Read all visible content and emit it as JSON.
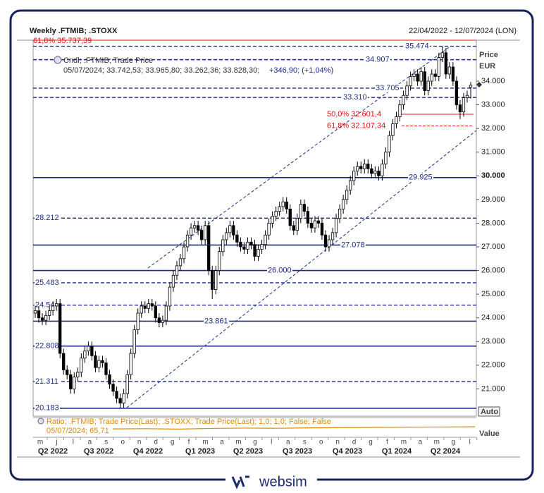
{
  "header": {
    "title": "Weekly .FTMIB; .STOXX",
    "range": "22/04/2022 - 12/07/2024 (LON)",
    "unit_title": "Price",
    "unit": "EUR",
    "legend": "Cndl; .FTMIB; Trade Price",
    "quote": "05/07/2024; 33.742,53; 33.965,80; 33.262,36; 33.828,30;",
    "change": "+346,90; (+1,04%)",
    "ratio_legend": "Ratio; .FTMIB; Trade Price(Last); .STOXX; Trade Price(Last);  1,0; 1,0; False; False",
    "ratio_quote": "05/07/2024; 65,71",
    "auto": "Auto",
    "value_title": "Value",
    "logo": "websim"
  },
  "chart_data": {
    "type": "candlestick",
    "up_color": "#ffffff",
    "down_color": "#000000",
    "edge_color": "#000000",
    "ylim": [
      19850,
      35730
    ],
    "yticks": [
      {
        "value": 21000,
        "label": "21.000"
      },
      {
        "value": 22000,
        "label": "22.000"
      },
      {
        "value": 23000,
        "label": "23.000"
      },
      {
        "value": 24000,
        "label": "24.000"
      },
      {
        "value": 25000,
        "label": "25.000"
      },
      {
        "value": 26000,
        "label": "26.000"
      },
      {
        "value": 27000,
        "label": "27.000"
      },
      {
        "value": 28000,
        "label": "28.000"
      },
      {
        "value": 29000,
        "label": "29.000"
      },
      {
        "value": 30000,
        "label": "30.000"
      },
      {
        "value": 31000,
        "label": "31.000"
      },
      {
        "value": 32000,
        "label": "32.000"
      },
      {
        "value": 33000,
        "label": "33.000"
      },
      {
        "value": 34000,
        "label": "34.000"
      }
    ],
    "months": [
      "m",
      "j",
      "l",
      "a",
      "s",
      "o",
      "n",
      "d",
      "g",
      "f",
      "m",
      "a",
      "m",
      "g",
      "l",
      "a",
      "s",
      "o",
      "n",
      "d",
      "g",
      "f",
      "m",
      "a",
      "m",
      "g",
      "l"
    ],
    "quarters": [
      "Q2 2022",
      "Q3 2022",
      "Q4 2022",
      "Q1 2023",
      "Q2 2023",
      "Q3 2023",
      "Q4 2023",
      "Q1 2024",
      "Q2 2024"
    ],
    "level_color": "#1c2a8a",
    "levels": [
      {
        "value": 20183,
        "label": "20.183",
        "style": "solid"
      },
      {
        "value": 21311,
        "label": "21.311",
        "style": "dashed"
      },
      {
        "value": 22808,
        "label": "22.808",
        "style": "solid"
      },
      {
        "value": 23861,
        "label": "23.861",
        "style": "solid"
      },
      {
        "value": 24540,
        "label": "24.54",
        "style": "dashed"
      },
      {
        "value": 25483,
        "label": "25.483",
        "style": "dashed"
      },
      {
        "value": 26000,
        "label": "26.000",
        "style": "solid"
      },
      {
        "value": 27078,
        "label": "27.078",
        "style": "solid"
      },
      {
        "value": 28212,
        "label": "28.212",
        "style": "dashed"
      },
      {
        "value": 29925,
        "label": "29.925",
        "style": "solid"
      },
      {
        "value": 33310,
        "label": "33.310",
        "style": "dashed"
      },
      {
        "value": 33705,
        "label": "33.705",
        "style": "dashed"
      },
      {
        "value": 34907,
        "label": "34.907",
        "style": "dashed"
      },
      {
        "value": 35474,
        "label": "35.474",
        "style": "dashed"
      }
    ],
    "fib_color": "#e01010",
    "fibs": [
      {
        "value": 35737.39,
        "label": "61,8% 35.737,39"
      },
      {
        "value": 32601.4,
        "label": "50,0% 32.601,4"
      },
      {
        "value": 32107.34,
        "label": "61,8% 32.107,34"
      }
    ],
    "candles": [
      [
        24200,
        24500,
        24000,
        24300
      ],
      [
        24300,
        24500,
        23800,
        24000
      ],
      [
        24000,
        24200,
        23700,
        23900
      ],
      [
        23900,
        24300,
        23700,
        24100
      ],
      [
        24100,
        24500,
        23900,
        24300
      ],
      [
        24300,
        24700,
        24100,
        24500
      ],
      [
        24500,
        24800,
        24300,
        24600
      ],
      [
        24600,
        24800,
        22300,
        22500
      ],
      [
        22500,
        22700,
        21600,
        21800
      ],
      [
        21800,
        22000,
        21400,
        21600
      ],
      [
        21600,
        21800,
        20800,
        21000
      ],
      [
        21000,
        21700,
        20800,
        21500
      ],
      [
        21500,
        21900,
        21300,
        21700
      ],
      [
        21700,
        22500,
        21500,
        22300
      ],
      [
        22300,
        22800,
        22100,
        22600
      ],
      [
        22600,
        23000,
        22400,
        22800
      ],
      [
        22800,
        23000,
        22200,
        22400
      ],
      [
        22400,
        22600,
        21700,
        21900
      ],
      [
        21900,
        22400,
        21700,
        22200
      ],
      [
        22200,
        22400,
        21900,
        22100
      ],
      [
        22100,
        22300,
        21400,
        21600
      ],
      [
        21600,
        21800,
        21000,
        21200
      ],
      [
        21200,
        21400,
        20700,
        20900
      ],
      [
        20900,
        21100,
        20400,
        20600
      ],
      [
        20600,
        20800,
        20200,
        20400
      ],
      [
        20400,
        21000,
        20200,
        20800
      ],
      [
        20800,
        21800,
        20600,
        21600
      ],
      [
        21600,
        22700,
        21400,
        22500
      ],
      [
        22500,
        23700,
        22300,
        23500
      ],
      [
        23500,
        24400,
        23300,
        24200
      ],
      [
        24200,
        24700,
        24000,
        24500
      ],
      [
        24500,
        24700,
        24200,
        24400
      ],
      [
        24400,
        24800,
        24200,
        24600
      ],
      [
        24600,
        24800,
        24300,
        24500
      ],
      [
        24500,
        24700,
        23800,
        24000
      ],
      [
        24000,
        24200,
        23600,
        23800
      ],
      [
        23800,
        24100,
        23600,
        23900
      ],
      [
        23900,
        24700,
        23700,
        24500
      ],
      [
        24500,
        25500,
        24300,
        25300
      ],
      [
        25300,
        26000,
        25100,
        25800
      ],
      [
        25800,
        26400,
        25600,
        26200
      ],
      [
        26200,
        26700,
        26000,
        26500
      ],
      [
        26500,
        27200,
        26300,
        27000
      ],
      [
        27000,
        27700,
        26800,
        27500
      ],
      [
        27500,
        28000,
        27300,
        27800
      ],
      [
        27800,
        28100,
        27600,
        27900
      ],
      [
        27900,
        28100,
        27500,
        27700
      ],
      [
        27700,
        27900,
        27100,
        27300
      ],
      [
        27300,
        28100,
        27100,
        27900
      ],
      [
        27900,
        28100,
        25800,
        26000
      ],
      [
        26000,
        26200,
        24800,
        25200
      ],
      [
        25200,
        26200,
        25000,
        26000
      ],
      [
        26000,
        27000,
        25800,
        26800
      ],
      [
        26800,
        27500,
        26600,
        27300
      ],
      [
        27300,
        27800,
        27100,
        27600
      ],
      [
        27600,
        28100,
        27400,
        27900
      ],
      [
        27900,
        28100,
        27300,
        27500
      ],
      [
        27500,
        27700,
        27000,
        27200
      ],
      [
        27200,
        27400,
        26800,
        27000
      ],
      [
        27000,
        27200,
        26700,
        26900
      ],
      [
        26900,
        27400,
        26700,
        27200
      ],
      [
        27200,
        27400,
        26900,
        27100
      ],
      [
        27100,
        27300,
        26400,
        26600
      ],
      [
        26600,
        27100,
        26400,
        26900
      ],
      [
        26900,
        27300,
        26700,
        27100
      ],
      [
        27100,
        27700,
        26900,
        27500
      ],
      [
        27500,
        28200,
        27300,
        28000
      ],
      [
        28000,
        28500,
        27800,
        28300
      ],
      [
        28300,
        28700,
        28100,
        28500
      ],
      [
        28500,
        28900,
        28300,
        28700
      ],
      [
        28700,
        29100,
        28500,
        28900
      ],
      [
        28900,
        29100,
        28400,
        28600
      ],
      [
        28600,
        28800,
        27700,
        27900
      ],
      [
        27900,
        28100,
        27500,
        27700
      ],
      [
        27700,
        28400,
        27500,
        28200
      ],
      [
        28200,
        29000,
        28000,
        28800
      ],
      [
        28800,
        29000,
        28300,
        28500
      ],
      [
        28500,
        28700,
        27800,
        28000
      ],
      [
        28000,
        28200,
        27600,
        27800
      ],
      [
        27800,
        28300,
        27600,
        28100
      ],
      [
        28100,
        28300,
        27800,
        28000
      ],
      [
        28000,
        28200,
        27300,
        27500
      ],
      [
        27500,
        27700,
        26800,
        27000
      ],
      [
        27000,
        27500,
        26800,
        27300
      ],
      [
        27300,
        27800,
        27100,
        27600
      ],
      [
        27600,
        28400,
        27400,
        28200
      ],
      [
        28200,
        28800,
        28000,
        28600
      ],
      [
        28600,
        29200,
        28400,
        29000
      ],
      [
        29000,
        29600,
        28800,
        29400
      ],
      [
        29400,
        30000,
        29200,
        29800
      ],
      [
        29800,
        30400,
        29600,
        30200
      ],
      [
        30200,
        30600,
        30000,
        30400
      ],
      [
        30400,
        30600,
        30100,
        30300
      ],
      [
        30300,
        30700,
        30100,
        30500
      ],
      [
        30500,
        30700,
        30100,
        30300
      ],
      [
        30300,
        30500,
        29900,
        30100
      ],
      [
        30100,
        30400,
        29900,
        30200
      ],
      [
        30200,
        30400,
        29800,
        30000
      ],
      [
        30000,
        30700,
        29800,
        30500
      ],
      [
        30500,
        31200,
        30300,
        31000
      ],
      [
        31000,
        31900,
        30800,
        31700
      ],
      [
        31700,
        32400,
        31500,
        32200
      ],
      [
        32200,
        32700,
        32000,
        32500
      ],
      [
        32500,
        33200,
        32300,
        33000
      ],
      [
        33000,
        33600,
        32800,
        33400
      ],
      [
        33400,
        34000,
        33200,
        33800
      ],
      [
        33800,
        34400,
        33600,
        34200
      ],
      [
        34200,
        34500,
        34000,
        34300
      ],
      [
        34300,
        34500,
        33800,
        34000
      ],
      [
        34000,
        34600,
        33800,
        34400
      ],
      [
        34400,
        34600,
        33400,
        33600
      ],
      [
        33600,
        34200,
        33400,
        34000
      ],
      [
        34000,
        34500,
        33800,
        34300
      ],
      [
        34300,
        34500,
        34000,
        34200
      ],
      [
        34200,
        35200,
        34000,
        35000
      ],
      [
        35000,
        35474,
        34800,
        35200
      ],
      [
        35200,
        35400,
        34100,
        34300
      ],
      [
        34300,
        34800,
        34100,
        34600
      ],
      [
        34600,
        34800,
        33800,
        34000
      ],
      [
        34000,
        34200,
        32800,
        33000
      ],
      [
        33000,
        33200,
        32400,
        32700
      ],
      [
        32700,
        33500,
        32500,
        33300
      ],
      [
        33300,
        33600,
        33100,
        33400
      ],
      [
        33742.53,
        33965.8,
        33262.36,
        33828.3
      ]
    ],
    "ratio": {
      "color": "#e08a00",
      "ylim": [
        55,
        75
      ],
      "values": [
        63.2,
        63.5,
        63.0,
        63.8,
        64.2,
        64.0,
        64.5,
        64.8,
        65.0,
        65.3,
        65.5,
        65.71
      ]
    }
  }
}
